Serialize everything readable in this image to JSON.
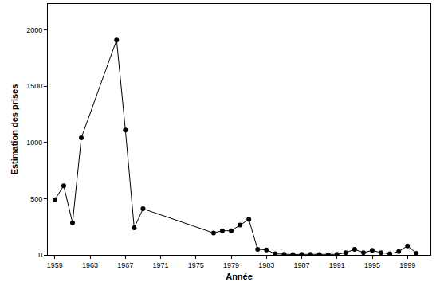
{
  "chart_data": {
    "type": "line",
    "x_label": "Année",
    "y_label": "Estimation des prises",
    "x": [
      1959,
      1960,
      1961,
      1962,
      1966,
      1967,
      1968,
      1969,
      1977,
      1978,
      1979,
      1980,
      1981,
      1982,
      1983,
      1984,
      1985,
      1986,
      1987,
      1988,
      1989,
      1990,
      1991,
      1992,
      1993,
      1994,
      1995,
      1996,
      1997,
      1998,
      1999,
      2000
    ],
    "values": [
      490,
      615,
      285,
      1040,
      1910,
      1110,
      240,
      410,
      195,
      215,
      215,
      265,
      315,
      50,
      45,
      10,
      5,
      3,
      5,
      5,
      3,
      2,
      5,
      20,
      50,
      20,
      40,
      20,
      10,
      30,
      80,
      15
    ],
    "color": "#000000",
    "marker": "circle",
    "line_style": "solid",
    "xlim": [
      1958.2,
      2001.6
    ],
    "xticks": [
      1959,
      1963,
      1967,
      1971,
      1975,
      1979,
      1983,
      1987,
      1991,
      1995,
      1999
    ],
    "ylim": [
      0,
      2230
    ],
    "yticks": [
      0,
      500,
      1000,
      1500,
      2000
    ],
    "grid": false
  }
}
